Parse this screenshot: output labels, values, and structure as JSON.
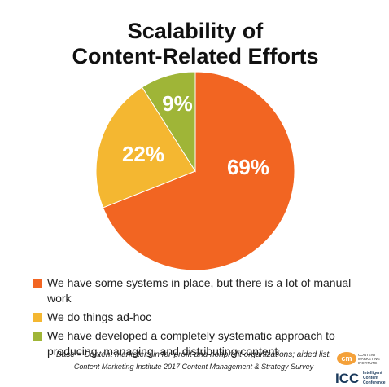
{
  "chart_data": {
    "type": "pie",
    "title": [
      "Scalability of",
      "Content-Related Efforts"
    ],
    "categories": [
      "We have some systems in place, but there is a lot of manual work",
      "We do things ad-hoc",
      "We have developed a completely systematic approach to producing, managing, and distributing content"
    ],
    "values": [
      69,
      22,
      9
    ],
    "value_labels": [
      "69%",
      "22%",
      "9%"
    ],
    "colors": [
      "#f26522",
      "#f4b731",
      "#9fb537"
    ],
    "footnotes": [
      "Base = Content marketers in for-profit and nonprofit organizations; aided list.",
      "Content Marketing Institute 2017 Content Management & Strategy Survey"
    ]
  },
  "logos": {
    "cmi": {
      "mark": "cm",
      "text": [
        "CONTENT",
        "MARKETING",
        "INSTITUTE"
      ]
    },
    "icc": {
      "mark": "ICC",
      "text": [
        "Intelligent",
        "Content",
        "Conference"
      ]
    }
  }
}
